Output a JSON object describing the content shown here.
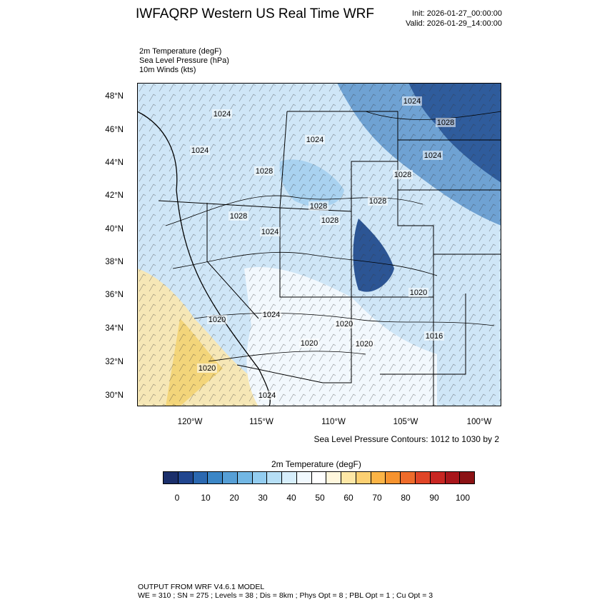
{
  "header": {
    "title": "IWFAQRP Western US Real Time WRF",
    "init": "Init: 2026-01-27_00:00:00",
    "valid": "Valid: 2026-01-29_14:00:00"
  },
  "fields": [
    "2m Temperature   (degF)",
    "Sea Level Pressure   (hPa)",
    "10m Winds   (kts)"
  ],
  "map": {
    "lat_labels": [
      "48°N",
      "46°N",
      "44°N",
      "42°N",
      "40°N",
      "38°N",
      "36°N",
      "34°N",
      "32°N",
      "30°N"
    ],
    "lon_labels": [
      "120°W",
      "115°W",
      "110°W",
      "105°W",
      "100°W"
    ],
    "pressure_labels": [
      "1024",
      "1024",
      "1024",
      "1028",
      "1028",
      "1024",
      "1024",
      "1028",
      "1028",
      "1028",
      "1028",
      "1028",
      "1024",
      "1020",
      "1020",
      "1020",
      "1024",
      "1020",
      "1020",
      "1016",
      "1020",
      "1024"
    ],
    "contour_note": "Sea Level Pressure Contours: 1012 to 1030 by 2"
  },
  "colorbar": {
    "title": "2m Temperature  (degF)",
    "colors": [
      "#1b2f6b",
      "#21468f",
      "#2b68b0",
      "#3b86c6",
      "#569fd6",
      "#72b7e4",
      "#93cdf0",
      "#b6dff6",
      "#d6eefb",
      "#f1f9fe",
      "#ffffff",
      "#fff7dd",
      "#fde7a6",
      "#fcd072",
      "#fbb446",
      "#f6932f",
      "#ee6b2a",
      "#e04527",
      "#c82622",
      "#a8161b",
      "#8b1214"
    ],
    "ticks": [
      "0",
      "10",
      "20",
      "30",
      "40",
      "50",
      "60",
      "70",
      "80",
      "90",
      "100"
    ]
  },
  "footer": {
    "line1": "OUTPUT FROM WRF V4.6.1 MODEL",
    "line2": "WE = 310 ; SN = 275 ; Levels = 38 ; Dis = 8km ; Phys Opt = 8 ; PBL Opt = 1 ; Cu Opt = 3"
  }
}
